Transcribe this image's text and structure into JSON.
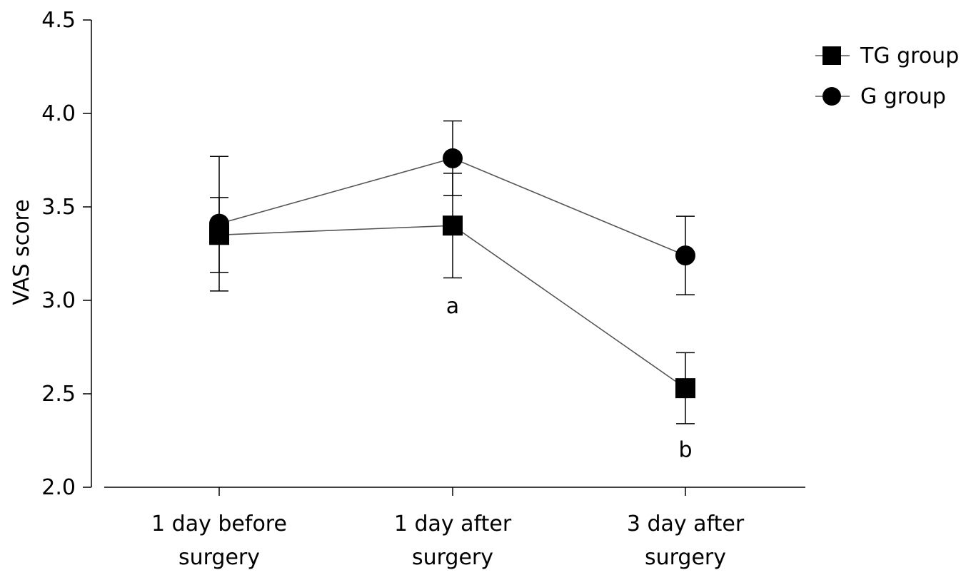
{
  "chart_data": {
    "type": "line",
    "title": "",
    "xlabel": "",
    "ylabel": "VAS score",
    "ylim": [
      2.0,
      4.5
    ],
    "yticks": [
      "2.0",
      "2.5",
      "3.0",
      "3.5",
      "4.0",
      "4.5"
    ],
    "categories": [
      [
        "1 day before",
        "surgery"
      ],
      [
        "1 day after",
        "surgery"
      ],
      [
        "3 day after",
        "surgery"
      ]
    ],
    "series": [
      {
        "name": "TG group",
        "marker": "square",
        "values": [
          3.35,
          3.4,
          2.53
        ],
        "error": [
          0.2,
          0.28,
          0.19
        ]
      },
      {
        "name": "G group",
        "marker": "circle",
        "values": [
          3.41,
          3.76,
          3.24
        ],
        "error": [
          0.36,
          0.2,
          0.21
        ]
      }
    ],
    "annotations": [
      {
        "text": "a",
        "category": 1,
        "y": 2.97
      },
      {
        "text": "b",
        "category": 2,
        "y": 2.2
      }
    ],
    "legend_position": "top-right",
    "grid": false,
    "line_color": "#555555",
    "marker_color": "#000000"
  }
}
